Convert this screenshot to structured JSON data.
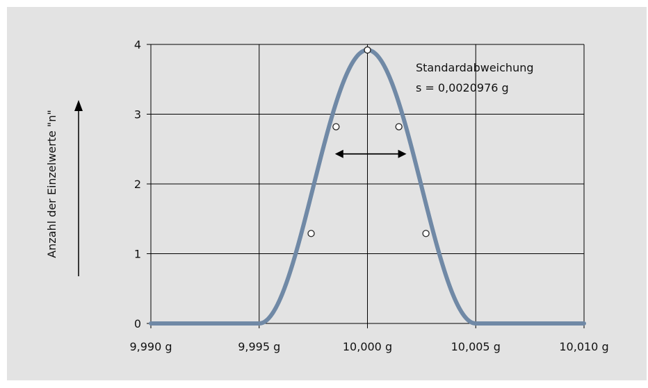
{
  "chart_data": {
    "type": "line",
    "title": "",
    "xlabel": "",
    "ylabel": "Anzahl der Einzelwerte \"n\"",
    "xlim": [
      9.99,
      10.01
    ],
    "ylim": [
      0,
      4
    ],
    "grid": true,
    "x_ticks": [
      {
        "value": 9.99,
        "label": "9,990 g"
      },
      {
        "value": 9.995,
        "label": "9,995 g"
      },
      {
        "value": 10.0,
        "label": "10,000 g"
      },
      {
        "value": 10.005,
        "label": "10,005 g"
      },
      {
        "value": 10.01,
        "label": "10,010 g"
      }
    ],
    "y_ticks": [
      {
        "value": 0,
        "label": "0"
      },
      {
        "value": 1,
        "label": "1"
      },
      {
        "value": 2,
        "label": "2"
      },
      {
        "value": 3,
        "label": "3"
      },
      {
        "value": 4,
        "label": "4"
      }
    ],
    "curve": {
      "center": 10.0,
      "peak": 3.92,
      "half_width": 0.005,
      "shape": "raised-cosine"
    },
    "points": [
      {
        "x": 9.9974,
        "y": 1.29
      },
      {
        "x": 9.99855,
        "y": 2.82
      },
      {
        "x": 10.0,
        "y": 3.92
      },
      {
        "x": 10.00145,
        "y": 2.82
      },
      {
        "x": 10.0027,
        "y": 1.29
      }
    ],
    "std_arrow": {
      "x_from": 9.9985,
      "x_to": 10.0018,
      "y": 2.43
    },
    "annotation": {
      "line1": "Standardabweichung",
      "line2": "s = 0,0020976 g"
    },
    "colors": {
      "curve": "#7089a6",
      "grid": "#000000",
      "background": "#e3e3e3",
      "marker_fill": "#ffffff",
      "marker_stroke": "#222222"
    }
  }
}
